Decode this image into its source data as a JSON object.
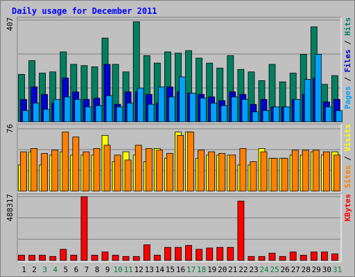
{
  "chart_data": {
    "type": "bar",
    "title": "Daily usage for December 2011",
    "categories": [
      "1",
      "2",
      "3",
      "4",
      "5",
      "6",
      "7",
      "8",
      "9",
      "10",
      "11",
      "12",
      "13",
      "14",
      "15",
      "16",
      "17",
      "18",
      "19",
      "20",
      "21",
      "22",
      "23",
      "24",
      "25",
      "26",
      "27",
      "28",
      "29",
      "30",
      "31"
    ],
    "weekend_days": [
      "3",
      "4",
      "10",
      "11",
      "17",
      "18",
      "24",
      "25",
      "31"
    ],
    "panels": [
      {
        "id": "hits-files-pages",
        "max_label": "407",
        "ylim": [
          0,
          407
        ],
        "axis_label_parts": [
          {
            "text": "Pages",
            "color": "#00a0ff"
          },
          {
            "text": " / ",
            "color": "#000000"
          },
          {
            "text": "Files",
            "color": "#0000d0"
          },
          {
            "text": " / ",
            "color": "#000000"
          },
          {
            "text": "Hits",
            "color": "#008060"
          }
        ],
        "series": [
          {
            "name": "Hits",
            "color": "#008060",
            "values": [
              190,
              245,
              195,
              200,
              280,
              230,
              225,
              220,
              335,
              230,
              200,
              400,
              265,
              235,
              280,
              275,
              285,
              255,
              235,
              215,
              265,
              210,
              200,
              165,
              230,
              160,
              195,
              270,
              380,
              150,
              185
            ]
          },
          {
            "name": "Files",
            "color": "#0000d0",
            "values": [
              90,
              140,
              110,
              75,
              175,
              120,
              90,
              95,
              230,
              70,
              120,
              120,
              110,
              75,
              140,
              120,
              115,
              110,
              100,
              85,
              120,
              110,
              70,
              90,
              60,
              60,
              90,
              110,
              175,
              80,
              90
            ]
          },
          {
            "name": "Pages",
            "color": "#00a0ff",
            "values": [
              45,
              75,
              50,
              90,
              100,
              90,
              60,
              65,
              105,
              60,
              75,
              135,
              70,
              140,
              100,
              180,
              115,
              95,
              75,
              65,
              100,
              90,
              40,
              45,
              60,
              60,
              90,
              170,
              270,
              60,
              45
            ]
          }
        ]
      },
      {
        "id": "visits-sites",
        "max_label": "76",
        "ylim": [
          0,
          76
        ],
        "axis_label_parts": [
          {
            "text": "Sites",
            "color": "#ff8000"
          },
          {
            "text": " / ",
            "color": "#000000"
          },
          {
            "text": "Visits",
            "color": "#ffff00"
          }
        ],
        "series": [
          {
            "name": "Visits",
            "color": "#ffff00",
            "values": [
              32,
              48,
              32,
              44,
              48,
              44,
              44,
              44,
              68,
              36,
              48,
              44,
              36,
              52,
              40,
              72,
              72,
              40,
              44,
              44,
              44,
              32,
              32,
              52,
              40,
              40,
              44,
              44,
              48,
              44,
              48
            ]
          },
          {
            "name": "Sites",
            "color": "#ff8000",
            "values": [
              48,
              52,
              46,
              50,
              72,
              66,
              48,
              52,
              56,
              44,
              38,
              56,
              52,
              50,
              46,
              68,
              72,
              50,
              48,
              46,
              44,
              52,
              36,
              48,
              40,
              40,
              50,
              50,
              50,
              48,
              44
            ]
          }
        ]
      },
      {
        "id": "kbytes",
        "max_label": "488317",
        "ylim": [
          0,
          488317
        ],
        "axis_label_parts": [
          {
            "text": "KBytes",
            "color": "#ff0000"
          }
        ],
        "series": [
          {
            "name": "KBytes",
            "color": "#ff0000",
            "values": [
              40000,
              40000,
              40000,
              30000,
              85000,
              40000,
              488317,
              40000,
              65000,
              40000,
              30000,
              30000,
              120000,
              40000,
              100000,
              100000,
              115000,
              85000,
              95000,
              100000,
              100000,
              455000,
              30000,
              30000,
              55000,
              30000,
              65000,
              40000,
              65000,
              65000,
              50000
            ]
          }
        ]
      }
    ]
  }
}
